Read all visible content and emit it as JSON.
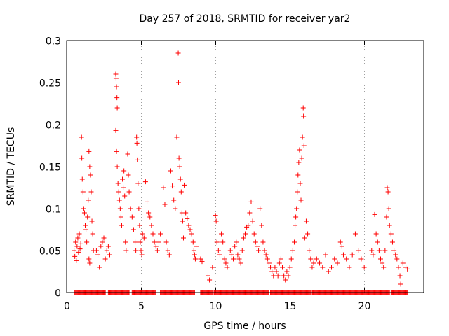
{
  "chart_data": {
    "type": "scatter",
    "title": "Day 257 of 2018, SRMTID for receiver yar2",
    "xlabel": "GPS time / hours",
    "ylabel": "SRMTID / TECUs",
    "xlim": [
      0,
      24
    ],
    "ylim": [
      0,
      0.3
    ],
    "xticks": [
      0,
      5,
      10,
      15,
      20
    ],
    "yticks": [
      0,
      0.05,
      0.1,
      0.15,
      0.2,
      0.25,
      0.3
    ],
    "xtick_labels": [
      "0",
      "5",
      "10",
      "15",
      "20"
    ],
    "ytick_labels": [
      "0",
      "0.05",
      "0.1",
      "0.15",
      "0.2",
      "0.25",
      "0.3"
    ],
    "grid": true,
    "marker": "+",
    "color": "#ff0000",
    "series": [
      {
        "name": "SRMTID",
        "points": [
          [
            0.5,
            0.05
          ],
          [
            0.55,
            0.043
          ],
          [
            0.6,
            0.06
          ],
          [
            0.65,
            0.038
          ],
          [
            0.7,
            0.055
          ],
          [
            0.75,
            0.065
          ],
          [
            0.8,
            0.048
          ],
          [
            0.85,
            0.07
          ],
          [
            0.9,
            0.052
          ],
          [
            0.95,
            0.058
          ],
          [
            1.0,
            0.185
          ],
          [
            1.02,
            0.16
          ],
          [
            1.05,
            0.135
          ],
          [
            1.1,
            0.12
          ],
          [
            1.15,
            0.1
          ],
          [
            1.2,
            0.095
          ],
          [
            1.25,
            0.08
          ],
          [
            1.3,
            0.075
          ],
          [
            1.35,
            0.06
          ],
          [
            1.4,
            0.09
          ],
          [
            1.45,
            0.11
          ],
          [
            1.5,
            0.168
          ],
          [
            1.55,
            0.15
          ],
          [
            1.6,
            0.14
          ],
          [
            1.65,
            0.12
          ],
          [
            1.7,
            0.085
          ],
          [
            1.75,
            0.07
          ],
          [
            1.8,
            0.05
          ],
          [
            1.5,
            0.04
          ],
          [
            1.55,
            0.035
          ],
          [
            2.0,
            0.05
          ],
          [
            2.1,
            0.045
          ],
          [
            2.2,
            0.03
          ],
          [
            2.3,
            0.055
          ],
          [
            2.4,
            0.06
          ],
          [
            2.5,
            0.065
          ],
          [
            2.6,
            0.04
          ],
          [
            2.7,
            0.05
          ],
          [
            2.8,
            0.055
          ],
          [
            2.9,
            0.045
          ],
          [
            3.3,
            0.26
          ],
          [
            3.32,
            0.255
          ],
          [
            3.35,
            0.245
          ],
          [
            3.38,
            0.232
          ],
          [
            3.4,
            0.22
          ],
          [
            3.3,
            0.193
          ],
          [
            3.35,
            0.168
          ],
          [
            3.4,
            0.15
          ],
          [
            3.45,
            0.13
          ],
          [
            3.5,
            0.12
          ],
          [
            3.55,
            0.11
          ],
          [
            3.6,
            0.1
          ],
          [
            3.65,
            0.09
          ],
          [
            3.7,
            0.08
          ],
          [
            3.75,
            0.135
          ],
          [
            3.8,
            0.125
          ],
          [
            3.85,
            0.145
          ],
          [
            3.9,
            0.115
          ],
          [
            3.95,
            0.06
          ],
          [
            4.0,
            0.05
          ],
          [
            4.1,
            0.165
          ],
          [
            4.15,
            0.14
          ],
          [
            4.2,
            0.12
          ],
          [
            4.3,
            0.1
          ],
          [
            4.4,
            0.09
          ],
          [
            4.5,
            0.075
          ],
          [
            4.6,
            0.06
          ],
          [
            4.65,
            0.05
          ],
          [
            4.7,
            0.185
          ],
          [
            4.72,
            0.178
          ],
          [
            4.75,
            0.158
          ],
          [
            4.8,
            0.13
          ],
          [
            4.85,
            0.1
          ],
          [
            4.9,
            0.08
          ],
          [
            4.95,
            0.06
          ],
          [
            5.0,
            0.05
          ],
          [
            5.05,
            0.045
          ],
          [
            5.1,
            0.07
          ],
          [
            5.2,
            0.065
          ],
          [
            5.3,
            0.132
          ],
          [
            5.4,
            0.108
          ],
          [
            5.5,
            0.095
          ],
          [
            5.6,
            0.09
          ],
          [
            5.7,
            0.08
          ],
          [
            5.8,
            0.07
          ],
          [
            5.9,
            0.06
          ],
          [
            6.0,
            0.055
          ],
          [
            6.1,
            0.05
          ],
          [
            6.2,
            0.06
          ],
          [
            6.3,
            0.07
          ],
          [
            6.5,
            0.125
          ],
          [
            6.6,
            0.105
          ],
          [
            6.7,
            0.06
          ],
          [
            6.8,
            0.05
          ],
          [
            6.9,
            0.045
          ],
          [
            7.0,
            0.145
          ],
          [
            7.1,
            0.127
          ],
          [
            7.2,
            0.11
          ],
          [
            7.3,
            0.1
          ],
          [
            7.4,
            0.185
          ],
          [
            7.5,
            0.285
          ],
          [
            7.52,
            0.25
          ],
          [
            7.55,
            0.16
          ],
          [
            7.6,
            0.15
          ],
          [
            7.65,
            0.135
          ],
          [
            7.7,
            0.12
          ],
          [
            7.75,
            0.095
          ],
          [
            7.8,
            0.085
          ],
          [
            7.85,
            0.065
          ],
          [
            7.9,
            0.128
          ],
          [
            8.0,
            0.095
          ],
          [
            8.1,
            0.088
          ],
          [
            8.2,
            0.08
          ],
          [
            8.3,
            0.075
          ],
          [
            8.4,
            0.07
          ],
          [
            8.5,
            0.06
          ],
          [
            8.55,
            0.05
          ],
          [
            8.6,
            0.045
          ],
          [
            8.65,
            0.04
          ],
          [
            8.7,
            0.055
          ],
          [
            9.0,
            0.04
          ],
          [
            9.1,
            0.037
          ],
          [
            9.5,
            0.02
          ],
          [
            9.6,
            0.015
          ],
          [
            9.8,
            0.03
          ],
          [
            10.0,
            0.092
          ],
          [
            10.05,
            0.085
          ],
          [
            10.1,
            0.06
          ],
          [
            10.2,
            0.05
          ],
          [
            10.3,
            0.045
          ],
          [
            10.4,
            0.07
          ],
          [
            10.5,
            0.06
          ],
          [
            10.6,
            0.04
          ],
          [
            10.7,
            0.035
          ],
          [
            10.8,
            0.03
          ],
          [
            11.0,
            0.05
          ],
          [
            11.1,
            0.045
          ],
          [
            11.2,
            0.04
          ],
          [
            11.3,
            0.055
          ],
          [
            11.4,
            0.06
          ],
          [
            11.5,
            0.045
          ],
          [
            11.6,
            0.04
          ],
          [
            11.7,
            0.035
          ],
          [
            11.8,
            0.05
          ],
          [
            11.9,
            0.065
          ],
          [
            12.0,
            0.07
          ],
          [
            12.1,
            0.078
          ],
          [
            12.2,
            0.08
          ],
          [
            12.3,
            0.095
          ],
          [
            12.4,
            0.108
          ],
          [
            12.5,
            0.085
          ],
          [
            12.6,
            0.07
          ],
          [
            12.7,
            0.06
          ],
          [
            12.8,
            0.055
          ],
          [
            12.9,
            0.05
          ],
          [
            13.0,
            0.1
          ],
          [
            13.1,
            0.08
          ],
          [
            13.2,
            0.06
          ],
          [
            13.3,
            0.05
          ],
          [
            13.4,
            0.045
          ],
          [
            13.5,
            0.04
          ],
          [
            13.6,
            0.035
          ],
          [
            13.7,
            0.03
          ],
          [
            13.8,
            0.025
          ],
          [
            13.9,
            0.02
          ],
          [
            14.0,
            0.03
          ],
          [
            14.1,
            0.025
          ],
          [
            14.2,
            0.02
          ],
          [
            14.3,
            0.035
          ],
          [
            14.4,
            0.04
          ],
          [
            14.5,
            0.03
          ],
          [
            14.6,
            0.02
          ],
          [
            14.7,
            0.015
          ],
          [
            14.8,
            0.025
          ],
          [
            14.9,
            0.02
          ],
          [
            15.0,
            0.03
          ],
          [
            15.1,
            0.04
          ],
          [
            15.2,
            0.05
          ],
          [
            15.3,
            0.06
          ],
          [
            15.35,
            0.08
          ],
          [
            15.4,
            0.09
          ],
          [
            15.45,
            0.1
          ],
          [
            15.5,
            0.12
          ],
          [
            15.55,
            0.14
          ],
          [
            15.6,
            0.155
          ],
          [
            15.65,
            0.17
          ],
          [
            15.7,
            0.13
          ],
          [
            15.75,
            0.11
          ],
          [
            15.8,
            0.16
          ],
          [
            15.85,
            0.185
          ],
          [
            15.9,
            0.22
          ],
          [
            15.92,
            0.21
          ],
          [
            15.95,
            0.175
          ],
          [
            16.0,
            0.065
          ],
          [
            16.1,
            0.085
          ],
          [
            16.2,
            0.07
          ],
          [
            16.3,
            0.05
          ],
          [
            16.4,
            0.04
          ],
          [
            16.5,
            0.03
          ],
          [
            16.6,
            0.035
          ],
          [
            16.8,
            0.04
          ],
          [
            17.0,
            0.035
          ],
          [
            17.2,
            0.03
          ],
          [
            17.4,
            0.045
          ],
          [
            17.6,
            0.025
          ],
          [
            17.8,
            0.03
          ],
          [
            18.0,
            0.04
          ],
          [
            18.2,
            0.035
          ],
          [
            18.4,
            0.06
          ],
          [
            18.5,
            0.055
          ],
          [
            18.6,
            0.045
          ],
          [
            18.8,
            0.04
          ],
          [
            19.0,
            0.03
          ],
          [
            19.2,
            0.045
          ],
          [
            19.4,
            0.07
          ],
          [
            19.6,
            0.05
          ],
          [
            19.8,
            0.04
          ],
          [
            20.0,
            0.03
          ],
          [
            20.5,
            0.05
          ],
          [
            20.6,
            0.045
          ],
          [
            20.7,
            0.093
          ],
          [
            20.8,
            0.07
          ],
          [
            20.9,
            0.06
          ],
          [
            21.0,
            0.05
          ],
          [
            21.1,
            0.04
          ],
          [
            21.2,
            0.035
          ],
          [
            21.3,
            0.03
          ],
          [
            21.4,
            0.05
          ],
          [
            21.5,
            0.09
          ],
          [
            21.55,
            0.125
          ],
          [
            21.6,
            0.12
          ],
          [
            21.65,
            0.1
          ],
          [
            21.7,
            0.08
          ],
          [
            21.8,
            0.07
          ],
          [
            21.9,
            0.06
          ],
          [
            22.0,
            0.05
          ],
          [
            22.1,
            0.045
          ],
          [
            22.2,
            0.04
          ],
          [
            22.3,
            0.03
          ],
          [
            22.4,
            0.02
          ],
          [
            22.45,
            0.01
          ],
          [
            22.6,
            0.035
          ],
          [
            22.8,
            0.03
          ],
          [
            22.9,
            0.028
          ]
        ]
      }
    ],
    "zero_band": {
      "y": 0,
      "x_ranges": [
        [
          0.5,
          2.6
        ],
        [
          2.8,
          4.2
        ],
        [
          4.4,
          6.0
        ],
        [
          6.3,
          8.6
        ],
        [
          9.0,
          9.8
        ],
        [
          9.9,
          13.6
        ],
        [
          13.7,
          16.4
        ],
        [
          16.5,
          21.7
        ],
        [
          21.8,
          22.9
        ]
      ]
    }
  }
}
